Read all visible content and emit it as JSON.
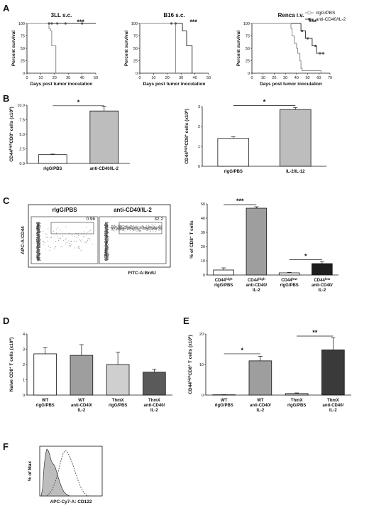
{
  "panels": {
    "A": {
      "label": "A",
      "legend": [
        "rIgG/PBS",
        "anti-CD40/IL-2"
      ],
      "charts": [
        {
          "title": "3LL s.c.",
          "xlabel": "Days post tumor inoculation",
          "ylabel": "Percent survival",
          "xlim": [
            0,
            50
          ],
          "xticks": [
            0,
            10,
            20,
            30,
            40,
            50
          ],
          "ylim": [
            0,
            100
          ],
          "yticks": [
            0,
            25,
            50,
            75,
            100
          ],
          "sig": "***",
          "control": [
            [
              0,
              100
            ],
            [
              16,
              100
            ],
            [
              16,
              90
            ],
            [
              17,
              90
            ],
            [
              17,
              85
            ],
            [
              18,
              85
            ],
            [
              18,
              55
            ],
            [
              21,
              55
            ],
            [
              21,
              0
            ]
          ],
          "treated": [
            [
              0,
              100
            ],
            [
              50,
              100
            ]
          ],
          "markers": [
            16,
            18,
            22,
            28,
            40
          ]
        },
        {
          "title": "B16 s.c.",
          "xlabel": "Days post tumor inoculation",
          "ylabel": "Percent survival",
          "xlim": [
            0,
            50
          ],
          "xticks": [
            0,
            10,
            20,
            30,
            40,
            50
          ],
          "ylim": [
            0,
            100
          ],
          "yticks": [
            0,
            25,
            50,
            75,
            100
          ],
          "sig": "***",
          "control": [
            [
              0,
              100
            ],
            [
              26,
              100
            ],
            [
              26,
              0
            ]
          ],
          "treated": [
            [
              0,
              100
            ],
            [
              31,
              100
            ],
            [
              31,
              85
            ],
            [
              34,
              85
            ],
            [
              34,
              55
            ],
            [
              38,
              55
            ],
            [
              38,
              0
            ]
          ],
          "markers": [
            23,
            26
          ]
        },
        {
          "title": "Renca i.v.",
          "xlabel": "Days post tumor inoculation",
          "ylabel": "Percent survival",
          "xlim": [
            0,
            70
          ],
          "xticks": [
            0,
            10,
            20,
            30,
            40,
            50,
            60,
            70
          ],
          "ylim": [
            0,
            100
          ],
          "yticks": [
            0,
            25,
            50,
            75,
            100
          ],
          "sig": "***",
          "control": [
            [
              0,
              100
            ],
            [
              35,
              100
            ],
            [
              35,
              90
            ],
            [
              36,
              90
            ],
            [
              36,
              75
            ],
            [
              38,
              75
            ],
            [
              38,
              60
            ],
            [
              40,
              60
            ],
            [
              40,
              50
            ],
            [
              41,
              50
            ],
            [
              41,
              40
            ],
            [
              43,
              40
            ],
            [
              43,
              25
            ],
            [
              44,
              25
            ],
            [
              44,
              10
            ],
            [
              45,
              10
            ],
            [
              45,
              5
            ],
            [
              62,
              5
            ],
            [
              62,
              0
            ]
          ],
          "treated": [
            [
              0,
              100
            ],
            [
              44,
              100
            ],
            [
              44,
              85
            ],
            [
              48,
              85
            ],
            [
              48,
              70
            ],
            [
              54,
              70
            ],
            [
              54,
              55
            ],
            [
              58,
              55
            ],
            [
              58,
              40
            ],
            [
              65,
              40
            ]
          ],
          "markers": [
            45,
            50,
            57,
            61,
            64
          ]
        }
      ]
    },
    "B": {
      "label": "B",
      "charts": [
        {
          "ylabel": "CD44highCD8+ cells (x106)",
          "ylim": [
            0,
            10
          ],
          "yticks": [
            "0.0",
            "2.5",
            "5.0",
            "7.5",
            "10.0"
          ],
          "categories": [
            "rIgG/PBS",
            "anti-CD40/IL-2"
          ],
          "values": [
            1.5,
            9.0
          ],
          "errors": [
            0.1,
            0.8
          ],
          "colors": [
            "#ffffff",
            "#bdbdbd"
          ],
          "sig": "*"
        },
        {
          "ylabel": "CD44highCD8+ cells (x106)",
          "ylim": [
            0,
            3
          ],
          "yticks": [
            "0",
            "1",
            "2",
            "3"
          ],
          "categories": [
            "rIgG/PBS",
            "IL-2/IL-12"
          ],
          "values": [
            1.4,
            2.85
          ],
          "errors": [
            0.08,
            0.1
          ],
          "colors": [
            "#ffffff",
            "#bdbdbd"
          ],
          "sig": "*"
        }
      ]
    },
    "C": {
      "label": "C",
      "flow": {
        "xlabel": "FITC-A:BrdU",
        "ylabel": "APC-A:CD44",
        "plots": [
          {
            "title": "rIgG/PBS",
            "gate_value": "0.96"
          },
          {
            "title": "anti-CD40/IL-2",
            "gate_value": "32.2"
          }
        ]
      },
      "bar": {
        "ylabel": "% of CD8+ T cells",
        "ylim": [
          0,
          50
        ],
        "yticks": [
          "0",
          "10",
          "20",
          "30",
          "40",
          "50"
        ],
        "categories": [
          [
            "CD44high",
            "rIgG/PBS"
          ],
          [
            "CD44high",
            "anti-CD40/",
            "IL-2"
          ],
          [
            "CD44low",
            "rIgG/PBS"
          ],
          [
            "CD44low",
            "anti-CD40/",
            "IL-2"
          ]
        ],
        "values": [
          3.5,
          47,
          1.5,
          8
        ],
        "errors": [
          1.5,
          1,
          0.3,
          1.5
        ],
        "colors": [
          "#ffffff",
          "#9e9e9e",
          "#ffffff",
          "#1e1e1e"
        ],
        "sig": [
          "***",
          "*"
        ]
      }
    },
    "D": {
      "label": "D",
      "chart": {
        "ylabel": "Naive CD8+ T cells (x106)",
        "ylim": [
          0,
          4
        ],
        "yticks": [
          "0",
          "1",
          "2",
          "3",
          "4"
        ],
        "categories": [
          [
            "WT",
            "rIgG/PBS"
          ],
          [
            "WT",
            "anti-CD40/",
            "IL-2"
          ],
          [
            "ThmX",
            "rIgG/PBS"
          ],
          [
            "ThmX",
            "anti-CD40/",
            "IL-2"
          ]
        ],
        "values": [
          2.7,
          2.6,
          2.0,
          1.5
        ],
        "errors": [
          0.4,
          0.7,
          0.8,
          0.2
        ],
        "colors": [
          "#ffffff",
          "#9e9e9e",
          "#cfcfcf",
          "#5a5a5a"
        ]
      }
    },
    "E": {
      "label": "E",
      "chart": {
        "ylabel": "CD44highCD8+ T cells (x106)",
        "ylim": [
          0,
          20
        ],
        "yticks": [
          "0",
          "10",
          "20"
        ],
        "categories": [
          [
            "WT",
            "rIgG/PBS"
          ],
          [
            "WT",
            "anti-CD40/",
            "IL-2"
          ],
          [
            "ThmX",
            "rIgG/PBS"
          ],
          [
            "ThmX",
            "anti-CD40/",
            "IL-2"
          ]
        ],
        "values": [
          0.1,
          11.2,
          0.5,
          14.8
        ],
        "errors": [
          0.05,
          1.5,
          0.2,
          4.0
        ],
        "colors": [
          "#ffffff",
          "#9e9e9e",
          "#cfcfcf",
          "#3a3a3a"
        ],
        "sig": [
          "*",
          "**"
        ]
      }
    },
    "F": {
      "label": "F",
      "histogram": {
        "xlabel": "APC-Cy7-A: CD122",
        "ylabel": "% of Max"
      }
    }
  },
  "chart_data": [
    {
      "type": "line",
      "title": "3LL s.c.",
      "xlabel": "Days post tumor inoculation",
      "ylabel": "Percent survival",
      "series": [
        {
          "name": "rIgG/PBS",
          "x": [
            0,
            16,
            17,
            18,
            21
          ],
          "y": [
            100,
            90,
            85,
            55,
            0
          ]
        },
        {
          "name": "anti-CD40/IL-2",
          "x": [
            0,
            50
          ],
          "y": [
            100,
            100
          ]
        }
      ]
    },
    {
      "type": "line",
      "title": "B16 s.c.",
      "xlabel": "Days post tumor inoculation",
      "ylabel": "Percent survival",
      "series": [
        {
          "name": "rIgG/PBS",
          "x": [
            0,
            26
          ],
          "y": [
            100,
            0
          ]
        },
        {
          "name": "anti-CD40/IL-2",
          "x": [
            0,
            31,
            34,
            38
          ],
          "y": [
            100,
            85,
            55,
            0
          ]
        }
      ]
    },
    {
      "type": "line",
      "title": "Renca i.v.",
      "xlabel": "Days post tumor inoculation",
      "ylabel": "Percent survival",
      "series": [
        {
          "name": "rIgG/PBS",
          "x": [
            0,
            35,
            36,
            38,
            40,
            41,
            43,
            44,
            45,
            62
          ],
          "y": [
            100,
            90,
            75,
            60,
            50,
            40,
            25,
            10,
            5,
            0
          ]
        },
        {
          "name": "anti-CD40/IL-2",
          "x": [
            0,
            44,
            48,
            54,
            58,
            65
          ],
          "y": [
            100,
            85,
            70,
            55,
            40,
            40
          ]
        }
      ]
    },
    {
      "type": "bar",
      "categories": [
        "rIgG/PBS",
        "anti-CD40/IL-2"
      ],
      "values": [
        1.5,
        9.0
      ],
      "ylabel": "CD44highCD8+ cells (x106)",
      "ylim": [
        0,
        10
      ]
    },
    {
      "type": "bar",
      "categories": [
        "rIgG/PBS",
        "IL-2/IL-12"
      ],
      "values": [
        1.4,
        2.85
      ],
      "ylabel": "CD44highCD8+ cells (x106)",
      "ylim": [
        0,
        3
      ]
    },
    {
      "type": "bar",
      "categories": [
        "CD44high rIgG/PBS",
        "CD44high anti-CD40/IL-2",
        "CD44low rIgG/PBS",
        "CD44low anti-CD40/IL-2"
      ],
      "values": [
        3.5,
        47,
        1.5,
        8
      ],
      "ylabel": "% of CD8+ T cells",
      "ylim": [
        0,
        50
      ]
    },
    {
      "type": "bar",
      "categories": [
        "WT rIgG/PBS",
        "WT anti-CD40/IL-2",
        "ThmX rIgG/PBS",
        "ThmX anti-CD40/IL-2"
      ],
      "values": [
        2.7,
        2.6,
        2.0,
        1.5
      ],
      "ylabel": "Naive CD8+ T cells (x106)",
      "ylim": [
        0,
        4
      ]
    },
    {
      "type": "bar",
      "categories": [
        "WT rIgG/PBS",
        "WT anti-CD40/IL-2",
        "ThmX rIgG/PBS",
        "ThmX anti-CD40/IL-2"
      ],
      "values": [
        0.1,
        11.2,
        0.5,
        14.8
      ],
      "ylabel": "CD44highCD8+ T cells (x106)",
      "ylim": [
        0,
        20
      ]
    }
  ]
}
